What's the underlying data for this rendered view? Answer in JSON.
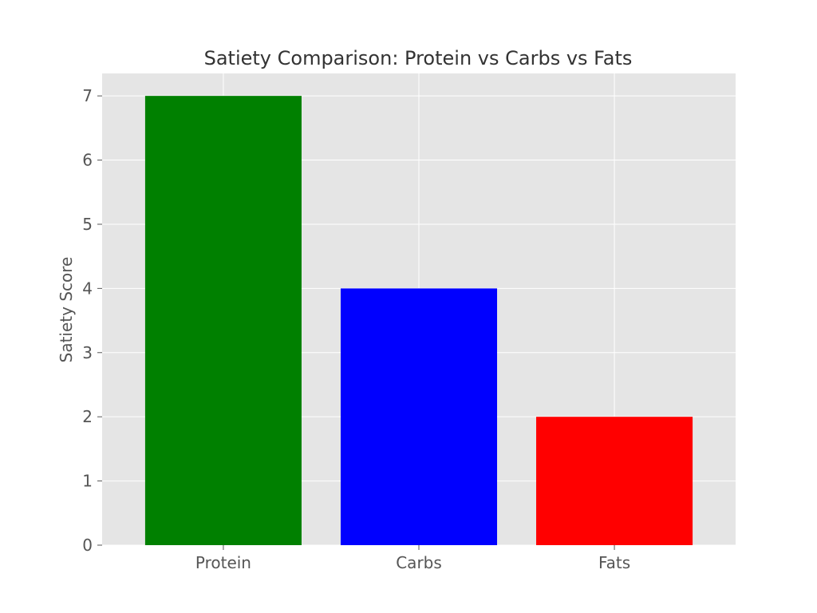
{
  "chart_data": {
    "type": "bar",
    "title": "Satiety Comparison: Protein vs Carbs vs Fats",
    "xlabel": "",
    "ylabel": "Satiety Score",
    "categories": [
      "Protein",
      "Carbs",
      "Fats"
    ],
    "values": [
      7,
      4,
      2
    ],
    "colors": [
      "#008000",
      "#0000ff",
      "#ff0000"
    ],
    "ylim": [
      0,
      7.35
    ],
    "yticks": [
      0,
      1,
      2,
      3,
      4,
      5,
      6,
      7
    ],
    "grid": true,
    "background": "#e5e5e5",
    "legend": "none"
  }
}
